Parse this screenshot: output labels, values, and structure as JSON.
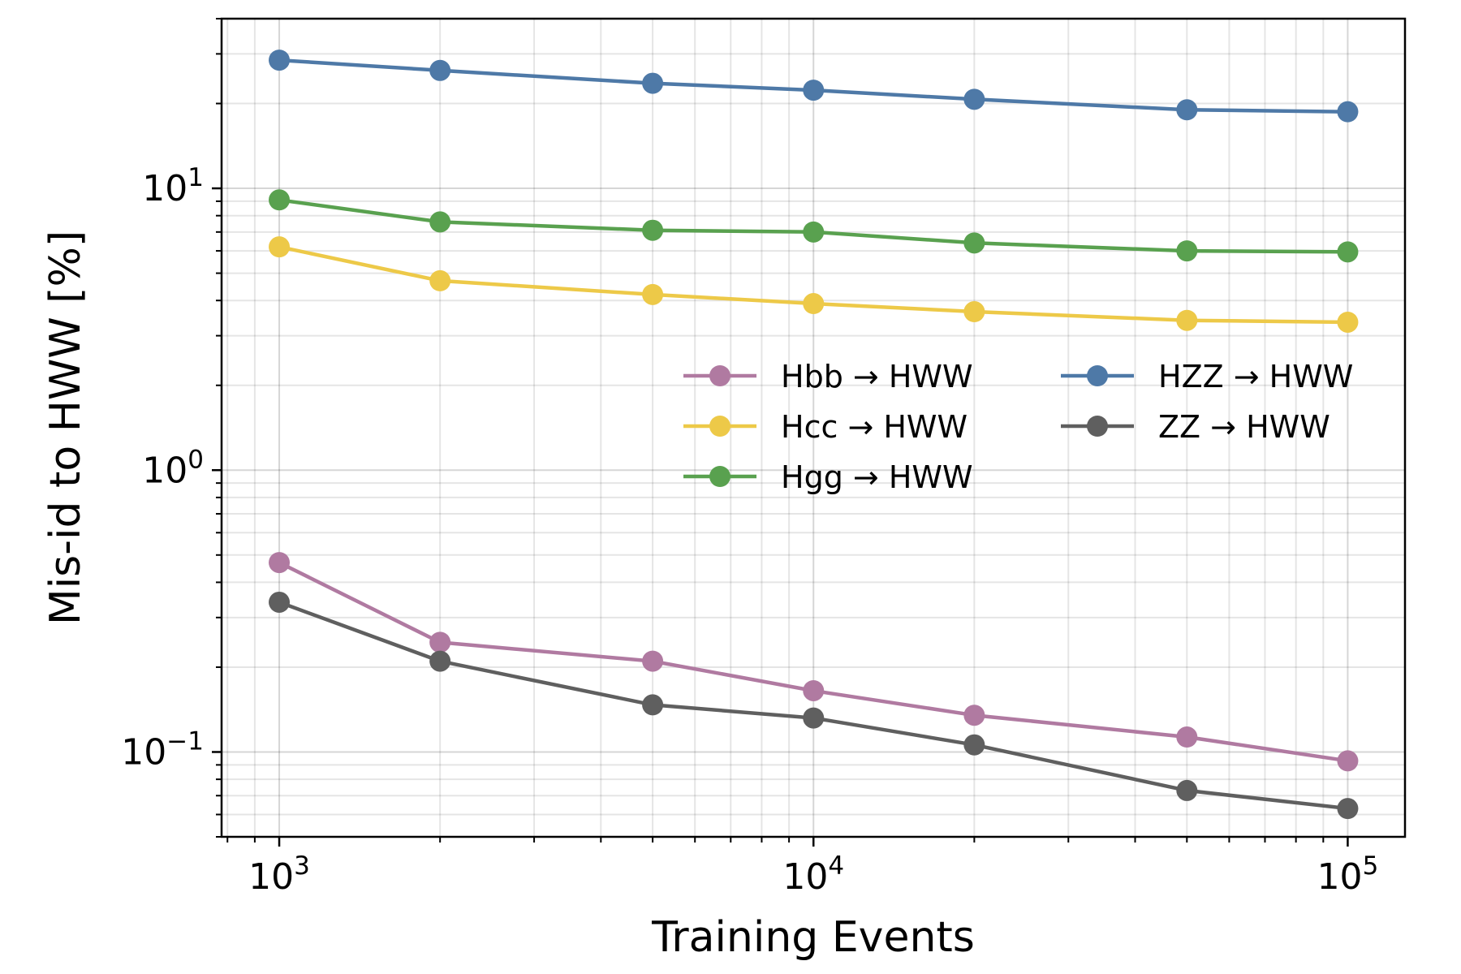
{
  "chart_data": {
    "type": "line",
    "xscale": "log",
    "yscale": "log",
    "xlabel": "Training Events",
    "ylabel": "Mis-id to HWW [%]",
    "xlim": [
      780,
      128000
    ],
    "ylim": [
      0.05,
      40
    ],
    "grid": true,
    "legend_position": "center-right",
    "legend_columns": 2,
    "x_ticks": [
      {
        "value": 1000,
        "base": "10",
        "exp": "3"
      },
      {
        "value": 10000,
        "base": "10",
        "exp": "4"
      },
      {
        "value": 100000,
        "base": "10",
        "exp": "5"
      }
    ],
    "y_ticks": [
      {
        "value": 0.1,
        "base": "10",
        "exp": "−1"
      },
      {
        "value": 1,
        "base": "10",
        "exp": "0"
      },
      {
        "value": 10,
        "base": "10",
        "exp": "1"
      }
    ],
    "x": [
      1000,
      2000,
      5000,
      10000,
      20000,
      50000,
      100000
    ],
    "series": [
      {
        "name": "Hbb → HWW",
        "color": "#b07aa1",
        "values": [
          0.47,
          0.245,
          0.21,
          0.165,
          0.135,
          0.113,
          0.093
        ]
      },
      {
        "name": "Hcc → HWW",
        "color": "#edc948",
        "values": [
          6.2,
          4.7,
          4.2,
          3.9,
          3.65,
          3.4,
          3.35
        ]
      },
      {
        "name": "Hgg → HWW",
        "color": "#59a14f",
        "values": [
          9.1,
          7.6,
          7.1,
          7.0,
          6.4,
          6.0,
          5.95
        ]
      },
      {
        "name": "HZZ → HWW",
        "color": "#4e79a7",
        "values": [
          28.5,
          26.2,
          23.6,
          22.3,
          20.7,
          19.0,
          18.7
        ]
      },
      {
        "name": "ZZ → HWW",
        "color": "#5f5f5f",
        "values": [
          0.34,
          0.21,
          0.147,
          0.132,
          0.106,
          0.073,
          0.063
        ]
      }
    ]
  }
}
